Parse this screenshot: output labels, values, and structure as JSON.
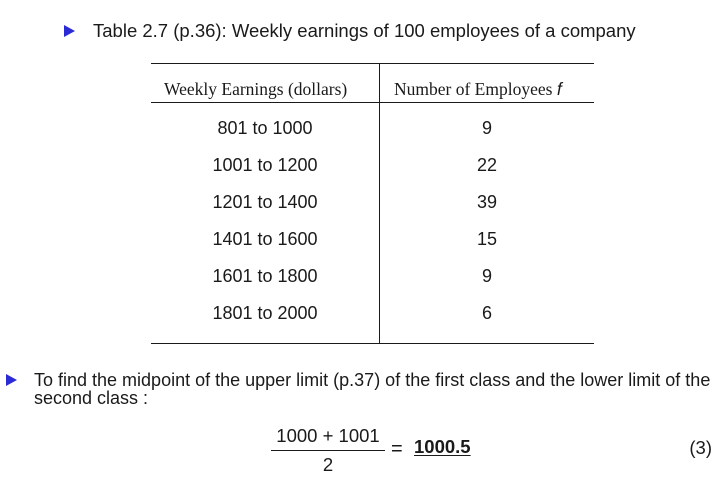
{
  "heading": "Table 2.7 (p.36): Weekly earnings of 100 employees of a company",
  "table": {
    "headers": {
      "earnings": "Weekly Earnings (dollars)",
      "employees": "Number of Employees",
      "employees_symbol": "f"
    },
    "rows": [
      {
        "earnings": "801 to 1000",
        "employees": "9"
      },
      {
        "earnings": "1001 to 1200",
        "employees": "22"
      },
      {
        "earnings": "1201 to 1400",
        "employees": "39"
      },
      {
        "earnings": "1401 to 1600",
        "employees": "15"
      },
      {
        "earnings": "1601 to 1800",
        "employees": "9"
      },
      {
        "earnings": "1801 to 2000",
        "employees": "6"
      }
    ]
  },
  "paragraph": "To find the midpoint of the upper limit (p.37) of the first class and the lower limit of the second class :",
  "equation": {
    "numerator": "1000 + 1001",
    "denominator": "2",
    "equals": "=",
    "result": "1000.5",
    "number": "(3)"
  },
  "colors": {
    "bullet": "#2b2bd6",
    "text": "#1a1a1a"
  }
}
